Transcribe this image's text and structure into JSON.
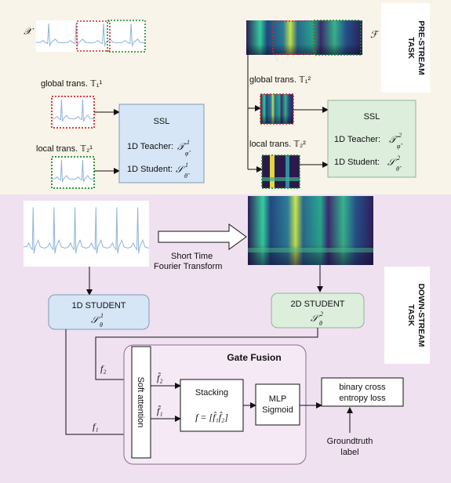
{
  "colors": {
    "pre_stream_bg": "#f8f4e9",
    "down_stream_bg": "#f0e1f0",
    "blue_box": "#d6e6f6",
    "green_box": "#ddeedd",
    "red_dotted": "#e02020",
    "green_dotted": "#1a8a2a",
    "ecg_line": "#8fb3d9"
  },
  "pre_stream": {
    "section_label_1": "PRE-STREAM",
    "section_label_2": "TASK",
    "signal_symbol": "𝒳",
    "spectrogram_symbol": "ℱ",
    "global_trans_1d": "global trans. 𝕋₁¹",
    "local_trans_1d": "local trans. 𝕋₂¹",
    "global_trans_2d": "global trans. 𝕋₁²",
    "local_trans_2d": "local trans. 𝕋₂²",
    "ssl_1d": {
      "title": "SSL",
      "teacher": "1D Teacher:",
      "teacher_sym": "𝒯",
      "teacher_sup": "1",
      "teacher_sub": "φ̂",
      "student": "1D Student:",
      "student_sym": "𝒮",
      "student_sup": "1",
      "student_sub": "θ̂"
    },
    "ssl_2d": {
      "title": "SSL",
      "teacher": "1D Teacher:",
      "teacher_sym": "𝒯",
      "teacher_sup": "2",
      "teacher_sub": "φ̂",
      "student": "1D Student:",
      "student_sym": "𝒮",
      "student_sup": "2",
      "student_sub": "θ̂"
    }
  },
  "down_stream": {
    "section_label_1": "DOWN-STREAM",
    "section_label_2": "TASK",
    "stft_1": "Short Time",
    "stft_2": "Fourier Transform",
    "student_1d": "1D STUDENT",
    "student_1d_sym": "𝒮",
    "student_1d_sup": "1",
    "student_1d_sub": "θ",
    "student_2d": "2D STUDENT",
    "student_2d_sym": "𝒮",
    "student_2d_sup": "2",
    "student_2d_sub": "θ",
    "f2": "f₂",
    "f1": "f₁",
    "gate_fusion": "Gate Fusion",
    "soft_attention": "Soft attention",
    "f2_hat": "f̂₂",
    "f1_hat": "f̂₁",
    "stacking": "Stacking",
    "stacking_eq": "f = [f̂₁f̂₂]",
    "mlp_1": "MLP",
    "mlp_2": "Sigmoid",
    "loss_1": "binary cross",
    "loss_2": "entropy loss",
    "gt_1": "Groundtruth",
    "gt_2": "label"
  }
}
